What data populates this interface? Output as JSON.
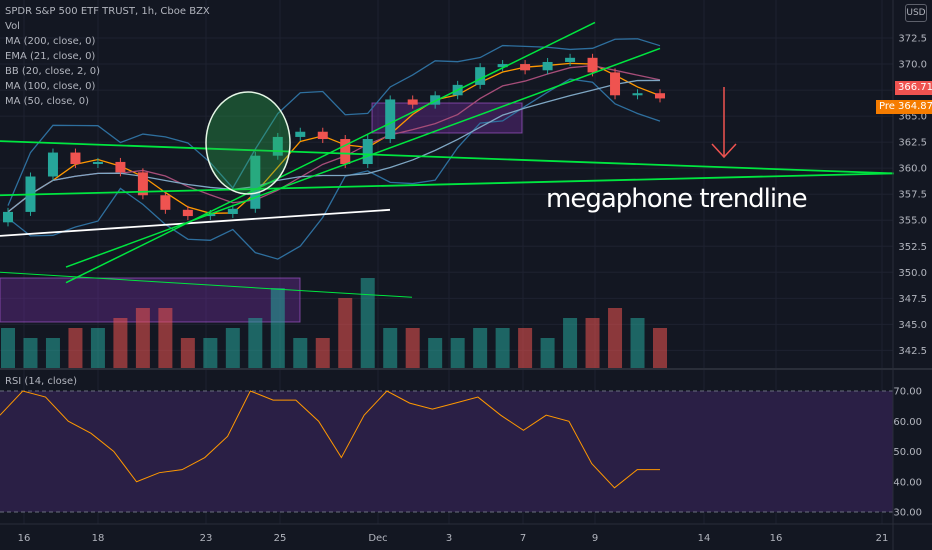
{
  "legend": {
    "title": "SPDR S&P 500 ETF TRUST, 1h, Cboe BZX",
    "vol": "Vol",
    "indicators": [
      "MA (200, close, 0)",
      "EMA (21, close, 0)",
      "BB (20, close, 2, 0)",
      "MA (100, close, 0)",
      "MA (50, close, 0)"
    ]
  },
  "rsi_label": "RSI (14, close)",
  "currency_button": "USD",
  "price_tags": {
    "last": "366.71",
    "pre_label": "Pre",
    "pre_value": "364.87"
  },
  "annotation": "megaphone trendline",
  "colors": {
    "background": "#131722",
    "up": "#26a69a",
    "down": "#ef5350",
    "trendline": "#00e640",
    "rsi_line": "#ff9800",
    "rsi_band": "#2a1f45",
    "arrow": "#ef5350"
  },
  "chart_data": [
    {
      "type": "line",
      "symbol": "SPY",
      "timeframe": "1h",
      "x_ticks": [
        "16",
        "18",
        "23",
        "25",
        "Dec",
        "3",
        "7",
        "9",
        "14",
        "16",
        "21"
      ],
      "y_ticks": [
        342.5,
        345.0,
        347.5,
        350.0,
        352.5,
        355.0,
        357.5,
        360.0,
        362.5,
        365.0,
        367.5,
        370.0,
        372.5
      ],
      "ylim": [
        341.0,
        375.0
      ],
      "x": [
        "16",
        "16",
        "17",
        "17",
        "18",
        "18",
        "19",
        "20",
        "23",
        "23",
        "24",
        "25",
        "25",
        "27",
        "30",
        "30",
        "Dec",
        "1",
        "2",
        "3",
        "3",
        "4",
        "7",
        "7",
        "8",
        "9",
        "9",
        "10",
        "10",
        "11"
      ],
      "close": [
        355.8,
        359.2,
        361.5,
        360.4,
        360.6,
        359.6,
        357.4,
        356.0,
        355.4,
        355.6,
        356.1,
        361.2,
        363.0,
        363.5,
        362.8,
        360.4,
        362.8,
        366.6,
        366.1,
        367.0,
        368.0,
        369.7,
        370.0,
        369.4,
        370.2,
        370.6,
        369.2,
        367.0,
        367.2,
        366.7
      ],
      "volume": [
        4,
        3,
        3,
        4,
        4,
        5,
        6,
        6,
        3,
        3,
        4,
        5,
        8,
        3,
        3,
        7,
        9,
        4,
        4,
        3,
        3,
        4,
        4,
        4,
        3,
        5,
        5,
        6,
        5,
        4
      ],
      "trendlines": [
        {
          "from": [
            "16",
            362.6
          ],
          "to": [
            "21",
            359.5
          ]
        },
        {
          "from": [
            "16",
            357.4
          ],
          "to": [
            "21",
            359.5
          ]
        },
        {
          "from": [
            "16",
            353.5
          ],
          "to": [
            "Dec",
            356.0
          ]
        }
      ]
    },
    {
      "type": "line",
      "title": "RSI (14, close)",
      "x_ticks": [
        "16",
        "18",
        "23",
        "25",
        "Dec",
        "3",
        "7",
        "9",
        "14",
        "16",
        "21"
      ],
      "y_ticks": [
        30.0,
        40.0,
        50.0,
        60.0,
        70.0
      ],
      "ylim": [
        27,
        75
      ],
      "bands": [
        30,
        70
      ],
      "x": [
        "16",
        "16",
        "17",
        "17",
        "18",
        "18",
        "19",
        "20",
        "23",
        "23",
        "24",
        "25",
        "25",
        "27",
        "30",
        "30",
        "Dec",
        "1",
        "2",
        "3",
        "3",
        "4",
        "7",
        "7",
        "8",
        "9",
        "9",
        "10",
        "10",
        "11"
      ],
      "values": [
        62,
        70,
        68,
        60,
        56,
        50,
        40,
        43,
        44,
        48,
        55,
        70,
        67,
        67,
        60,
        48,
        62,
        70,
        66,
        64,
        66,
        68,
        62,
        57,
        62,
        60,
        46,
        38,
        44,
        44
      ]
    }
  ]
}
